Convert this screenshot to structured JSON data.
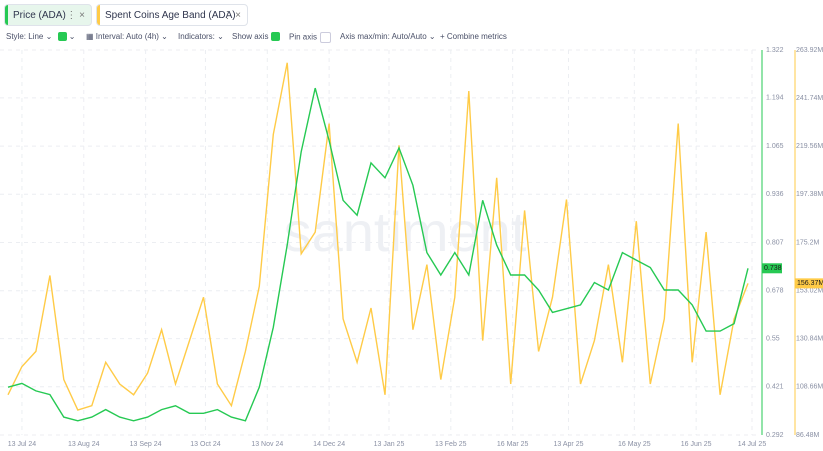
{
  "tabs": [
    "Price (ADA)",
    "Spent Coins Age Band (ADA)"
  ],
  "toolbar": {
    "style": "Style: Line",
    "interval": "Interval: Auto (4h)",
    "indicators": "Indicators:",
    "show_axis": "Show axis",
    "pin_axis": "Pin axis",
    "axis_minmax": "Axis max/min: Auto/Auto",
    "combine": "Combine metrics"
  },
  "watermark": "santiment",
  "chart_data": {
    "type": "line",
    "x": [
      "2024-07-06",
      "2024-07-13",
      "2024-07-20",
      "2024-07-27",
      "2024-08-03",
      "2024-08-10",
      "2024-08-17",
      "2024-08-24",
      "2024-08-31",
      "2024-09-07",
      "2024-09-14",
      "2024-09-21",
      "2024-09-28",
      "2024-10-05",
      "2024-10-12",
      "2024-10-19",
      "2024-10-26",
      "2024-11-02",
      "2024-11-09",
      "2024-11-16",
      "2024-11-23",
      "2024-11-30",
      "2024-12-07",
      "2024-12-14",
      "2024-12-21",
      "2024-12-28",
      "2025-01-04",
      "2025-01-11",
      "2025-01-18",
      "2025-01-25",
      "2025-02-01",
      "2025-02-08",
      "2025-02-15",
      "2025-02-22",
      "2025-03-01",
      "2025-03-08",
      "2025-03-15",
      "2025-03-22",
      "2025-03-29",
      "2025-04-05",
      "2025-04-12",
      "2025-04-19",
      "2025-04-26",
      "2025-05-03",
      "2025-05-10",
      "2025-05-17",
      "2025-05-24",
      "2025-05-31",
      "2025-06-07",
      "2025-06-14",
      "2025-06-21",
      "2025-06-28",
      "2025-07-05",
      "2025-07-12"
    ],
    "xlim": [
      "2024-07-02",
      "2025-07-18"
    ],
    "xticks": [
      {
        "value": "2024-07-13",
        "label": "13 Jul 24"
      },
      {
        "value": "2024-08-13",
        "label": "13 Aug 24"
      },
      {
        "value": "2024-09-13",
        "label": "13 Sep 24"
      },
      {
        "value": "2024-10-13",
        "label": "13 Oct 24"
      },
      {
        "value": "2024-11-13",
        "label": "13 Nov 24"
      },
      {
        "value": "2024-12-14",
        "label": "14 Dec 24"
      },
      {
        "value": "2025-01-13",
        "label": "13 Jan 25"
      },
      {
        "value": "2025-02-13",
        "label": "13 Feb 25"
      },
      {
        "value": "2025-03-16",
        "label": "16 Mar 25"
      },
      {
        "value": "2025-04-13",
        "label": "13 Apr 25"
      },
      {
        "value": "2025-05-16",
        "label": "16 May 25"
      },
      {
        "value": "2025-06-16",
        "label": "16 Jun 25"
      },
      {
        "value": "2025-07-14",
        "label": "14 Jul 25"
      }
    ],
    "ylim": [
      0.292,
      1.322
    ],
    "yticks": [
      0.292,
      0.421,
      0.55,
      0.678,
      0.807,
      0.936,
      1.065,
      1.194,
      1.322
    ],
    "y2lim": [
      86.48,
      263.92
    ],
    "y2ticks": [
      {
        "value": 86.48,
        "label": "86.48M"
      },
      {
        "value": 108.66,
        "label": "108.66M"
      },
      {
        "value": 130.84,
        "label": "130.84M"
      },
      {
        "value": 153.02,
        "label": "153.02M"
      },
      {
        "value": 175.2,
        "label": "175.2M"
      },
      {
        "value": 197.38,
        "label": "197.38M"
      },
      {
        "value": 219.56,
        "label": "219.56M"
      },
      {
        "value": 241.74,
        "label": "241.74M"
      },
      {
        "value": 263.92,
        "label": "263.92M"
      }
    ],
    "grid": true,
    "series": [
      {
        "name": "Price (ADA)",
        "color": "#26c953",
        "values": [
          0.42,
          0.43,
          0.41,
          0.4,
          0.34,
          0.33,
          0.34,
          0.36,
          0.34,
          0.33,
          0.34,
          0.36,
          0.37,
          0.35,
          0.35,
          0.36,
          0.34,
          0.33,
          0.42,
          0.58,
          0.8,
          1.05,
          1.22,
          1.08,
          0.92,
          0.88,
          1.02,
          0.98,
          1.06,
          0.96,
          0.78,
          0.72,
          0.78,
          0.72,
          0.92,
          0.8,
          0.72,
          0.72,
          0.68,
          0.62,
          0.63,
          0.64,
          0.7,
          0.68,
          0.78,
          0.76,
          0.74,
          0.68,
          0.68,
          0.64,
          0.57,
          0.57,
          0.59,
          0.738
        ],
        "last_label": "0.738"
      },
      {
        "name": "Spent Coins Age Band (ADA)",
        "color": "#ffcb47",
        "axis": "y2",
        "values": [
          105,
          118,
          125,
          160,
          112,
          98,
          100,
          120,
          110,
          105,
          115,
          135,
          110,
          130,
          150,
          110,
          100,
          125,
          155,
          225,
          258,
          170,
          180,
          230,
          140,
          120,
          145,
          105,
          220,
          135,
          165,
          112,
          150,
          245,
          130,
          205,
          110,
          190,
          125,
          150,
          195,
          110,
          130,
          165,
          120,
          185,
          110,
          140,
          230,
          120,
          180,
          105,
          140,
          156.37
        ],
        "last_label": "156.37M"
      }
    ]
  }
}
